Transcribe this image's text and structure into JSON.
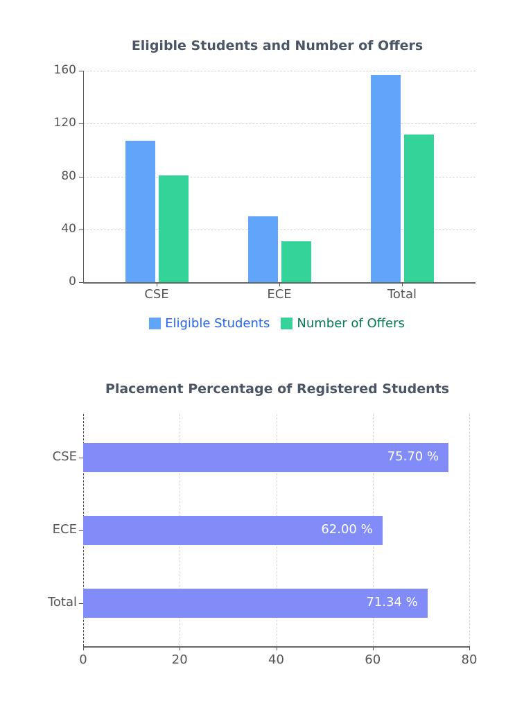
{
  "chart_data": [
    {
      "type": "bar",
      "title": "Eligible Students and Number of Offers",
      "categories": [
        "CSE",
        "ECE",
        "Total"
      ],
      "series": [
        {
          "name": "Eligible Students",
          "values": [
            107,
            50,
            157
          ],
          "color": "#60a5fa",
          "legend_text_color": "#2563eb"
        },
        {
          "name": "Number of Offers",
          "values": [
            81,
            31,
            112
          ],
          "color": "#34d399",
          "legend_text_color": "#047857"
        }
      ],
      "xlabel": "",
      "ylabel": "",
      "ylim": [
        0,
        160
      ],
      "yticks": [
        "0",
        "40",
        "80",
        "120",
        "160"
      ],
      "grid": true,
      "legend_position": "bottom"
    },
    {
      "type": "bar",
      "orientation": "horizontal",
      "title": "Placement Percentage of Registered Students",
      "categories": [
        "CSE",
        "ECE",
        "Total"
      ],
      "values": [
        75.7,
        62.0,
        71.34
      ],
      "data_labels": [
        "75.70 %",
        "62.00 %",
        "71.34 %"
      ],
      "color": "#818cf8",
      "xlim": [
        0,
        80
      ],
      "xticks": [
        "0",
        "20",
        "40",
        "60",
        "80"
      ],
      "xlabel": "",
      "ylabel": "",
      "grid": true
    }
  ]
}
